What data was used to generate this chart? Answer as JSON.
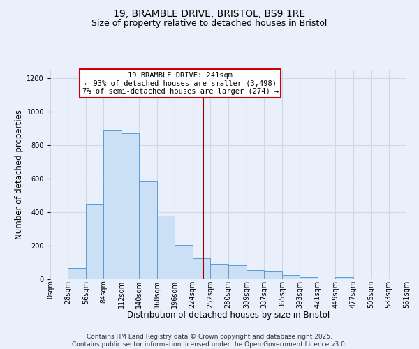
{
  "title": "19, BRAMBLE DRIVE, BRISTOL, BS9 1RE",
  "subtitle": "Size of property relative to detached houses in Bristol",
  "xlabel": "Distribution of detached houses by size in Bristol",
  "ylabel": "Number of detached properties",
  "bar_edges": [
    0,
    28,
    56,
    84,
    112,
    140,
    168,
    196,
    224,
    252,
    280,
    309,
    337,
    365,
    393,
    421,
    449,
    477,
    505,
    533,
    561
  ],
  "bar_heights": [
    5,
    65,
    450,
    890,
    870,
    585,
    380,
    205,
    125,
    90,
    85,
    55,
    48,
    25,
    12,
    5,
    14,
    5,
    2,
    2
  ],
  "bar_face_color": "#cce0f5",
  "bar_edge_color": "#5b9bd5",
  "grid_color": "#d0d8e8",
  "bg_color": "#eaf0fb",
  "vline_x": 241,
  "vline_color": "#990000",
  "annotation_text": "19 BRAMBLE DRIVE: 241sqm\n← 93% of detached houses are smaller (3,498)\n7% of semi-detached houses are larger (274) →",
  "annotation_box_color": "#ffffff",
  "annotation_box_edge_color": "#cc0000",
  "ylim": [
    0,
    1250
  ],
  "yticks": [
    0,
    200,
    400,
    600,
    800,
    1000,
    1200
  ],
  "tick_labels": [
    "0sqm",
    "28sqm",
    "56sqm",
    "84sqm",
    "112sqm",
    "140sqm",
    "168sqm",
    "196sqm",
    "224sqm",
    "252sqm",
    "280sqm",
    "309sqm",
    "337sqm",
    "365sqm",
    "393sqm",
    "421sqm",
    "449sqm",
    "477sqm",
    "505sqm",
    "533sqm",
    "561sqm"
  ],
  "footnote": "Contains HM Land Registry data © Crown copyright and database right 2025.\nContains public sector information licensed under the Open Government Licence v3.0.",
  "title_fontsize": 10,
  "subtitle_fontsize": 9,
  "label_fontsize": 8.5,
  "tick_fontsize": 7,
  "annotation_fontsize": 7.5,
  "footnote_fontsize": 6.5
}
